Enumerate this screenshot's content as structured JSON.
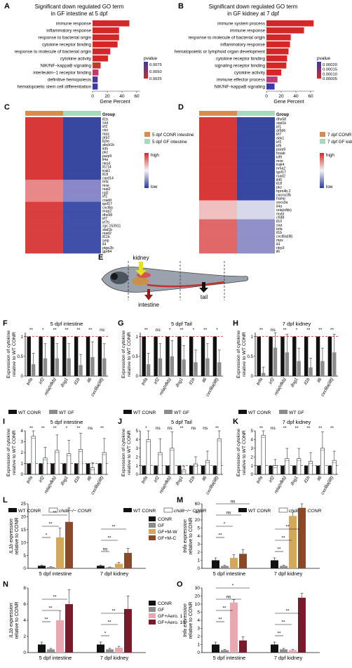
{
  "panels": {
    "A": {
      "letter": "A",
      "title": [
        "Significant down regulated GO term",
        "in GF intestine at 5 dpf"
      ],
      "xlabel": "Gene Percent",
      "legend_title": "pvalue",
      "legend_ticks": [
        "0.0075",
        "0.0050",
        "0.0025"
      ],
      "xticks": [
        "0",
        "20",
        "40",
        "60"
      ],
      "terms": [
        "immune response",
        "inflammatory response",
        "response to bacterial origin",
        "cytokine receptor binding",
        "response to molecule of bacterial origin",
        "cytokine activity",
        "NIK/NF−kappaB signaling",
        "interleukin−1 receptor binding",
        "definitive hemopoiesis",
        "hematopoietic stem cell differentiation"
      ],
      "values": [
        50,
        36,
        36,
        34,
        24,
        21,
        11,
        8,
        7,
        7
      ],
      "colors": [
        "#d62728",
        "#d62728",
        "#d62728",
        "#d62728",
        "#d62728",
        "#d62728",
        "#c0392b",
        "#c03a6a",
        "#4a3a9a",
        "#3a3aa8"
      ]
    },
    "B": {
      "letter": "B",
      "title": [
        "Significant down regulated GO term",
        "in GF kidney at 7 dpf"
      ],
      "xlabel": "Gene Percent",
      "legend_title": "pvalue",
      "legend_ticks": [
        "0.00020",
        "0.00015",
        "0.00010",
        "0.00005"
      ],
      "xticks": [
        "0",
        "20",
        "40",
        "60"
      ],
      "terms": [
        "immune system process",
        "immune response",
        "response to molecule of bacterial origin",
        "inflammatory response",
        "hematopoietic or lymphoid organ development",
        "cytokine receptor binding",
        "signaling receptor binding",
        "cytokine activity",
        "immune effector process",
        "NIK/NF−kappaB signaling"
      ],
      "values": [
        64,
        51,
        33,
        32,
        30,
        28,
        27,
        20,
        15,
        11
      ],
      "colors": [
        "#d62728",
        "#d62728",
        "#d62728",
        "#d62728",
        "#d62728",
        "#d62728",
        "#d62728",
        "#d62728",
        "#c0397a",
        "#3a3aa8"
      ]
    },
    "C": {
      "letter": "C",
      "group_label": "Group",
      "legend": [
        "5 dpf CONR intestine",
        "5 dpf GF intestine"
      ],
      "legend_colors": [
        "#d98c4f",
        "#a8d8c0"
      ],
      "scale": [
        "high",
        "low"
      ],
      "genes": [
        "il1b",
        "saa",
        "irf2",
        "ctsi",
        "mpx",
        "grp2",
        "b2m",
        "abcb1b",
        "il45",
        "pkz",
        "parp9",
        "il4a",
        "nlrp3",
        "il1r14",
        "irak1",
        "il18",
        "card14",
        "tnfa",
        "mxe",
        "rsat2",
        "rgl2",
        "irf1",
        "cradd",
        "igsf17",
        "cxcl8a",
        "erap2",
        "dhx58",
        "irf7",
        "irf7b",
        "zgc:153911",
        "stat1b",
        "rsad2",
        "il11b",
        "selp",
        "il4",
        "ptge2b",
        "gpr84"
      ]
    },
    "D": {
      "letter": "D",
      "group_label": "Group",
      "legend": [
        "7 dpf CONR kidney",
        "7 dpf GF kidney"
      ],
      "legend_colors": [
        "#d98c4f",
        "#a8d8c0"
      ],
      "scale": [
        "high",
        "low"
      ],
      "genes": [
        "dhx58",
        "stat1b",
        "irf1",
        "grbpb",
        "irf7",
        "ddx1",
        "irf2",
        "irf9",
        "parp9",
        "fosab",
        "kif9",
        "mxe",
        "irak4",
        "nr5a2",
        "igsf17",
        "rsad2",
        "il45",
        "il18",
        "pkz",
        "trpm4b.2",
        "cacna1fb",
        "hamp",
        "socs3a",
        "il4a",
        "rela(nfkb)",
        "mybl",
        "chd8",
        "il10",
        "saa",
        "tnfa",
        "il1b",
        "cxcl8a(il8)",
        "mpx",
        "il4",
        "nlrp3",
        "il6"
      ]
    },
    "E": {
      "letter": "E",
      "labels": [
        "kidney",
        "intestine",
        "tail"
      ]
    },
    "F": {
      "letter": "F",
      "title": "5 dpf intestine",
      "ylabel": [
        "Expression of cytokine",
        "relative to WT CONR"
      ],
      "yticks": [
        "0",
        "0.5",
        "1"
      ],
      "genes": [
        "tnfa",
        "irf2",
        "rela(nfkb)",
        "ifng1",
        "il1b",
        "il6",
        "cxcl8a(il8)"
      ],
      "values": [
        0.3,
        0.45,
        0.45,
        0.45,
        0.28,
        0.48,
        0.45
      ],
      "sig": [
        "**",
        "*",
        "**",
        "**",
        "**",
        "**",
        "ns"
      ],
      "legend": [
        "WT CONR",
        "WT GF"
      ]
    },
    "G": {
      "letter": "G",
      "title": "5 dpf Tail",
      "ylabel": [
        "Expression of cytokine",
        "relative to WT CONR"
      ],
      "yticks": [
        "0",
        "0.5",
        "1"
      ],
      "genes": [
        "tnfa",
        "irf2",
        "rela(nfkb)",
        "ifng1",
        "il1b",
        "il6",
        "cxcl8a(il8)"
      ],
      "values": [
        0.3,
        0.45,
        0.5,
        0.42,
        0.35,
        0.45,
        0.35
      ],
      "sig": [
        "**",
        "ns",
        "*",
        "**",
        "*",
        "**",
        "*"
      ],
      "legend": [
        "WT CONR",
        "WT GF"
      ]
    },
    "H": {
      "letter": "H",
      "title": "7 dpf kidney",
      "ylabel": [
        "Expression of cytokine",
        "relative to WT CONR"
      ],
      "yticks": [
        "0",
        "0.5",
        "1"
      ],
      "genes": [
        "tnfa",
        "irf2",
        "rela(nfkb)",
        "ifng1",
        "il1b",
        "il6",
        "cxcl8a(il8)"
      ],
      "values": [
        0.08,
        0.72,
        0.6,
        0.38,
        0.22,
        0.38,
        0.6
      ],
      "sig": [
        "**",
        "ns",
        "**",
        "*",
        "**",
        "**",
        "**"
      ],
      "legend": [
        "WT CONR",
        "WT GF"
      ]
    },
    "I": {
      "letter": "I",
      "title": "5 dpf intestine",
      "ylabel": [
        "Expression of cytokine",
        "relative to WT CONR"
      ],
      "yticks": [
        "0",
        "1",
        "2",
        "3",
        "4"
      ],
      "genes": [
        "tnfa",
        "irf2",
        "rela(nfkb)",
        "ifng1",
        "il1b",
        "il6",
        "cxcl8a(il8)"
      ],
      "values": [
        3.5,
        1.5,
        2.2,
        1.9,
        2.3,
        0.6,
        2.0
      ],
      "sig": [
        "**",
        "**",
        "**",
        "*",
        "**",
        "ns",
        "**"
      ],
      "legend": [
        "WT CONR",
        "chd8−/− CONR"
      ]
    },
    "J": {
      "letter": "J",
      "title": "5 dpf Tail",
      "ylabel": [
        "Expression of cytokine",
        "relative to WT CONR"
      ],
      "yticks": [
        "0",
        "1",
        "2",
        "3",
        "4",
        "5"
      ],
      "genes": [
        "tnfa",
        "irf2",
        "rela(nfkb)",
        "ifng1",
        "il1b",
        "il6",
        "cxcl8a(il8)"
      ],
      "values": [
        4.0,
        2.5,
        3.0,
        0.5,
        1.2,
        1.6,
        4.1
      ],
      "sig": [
        "*",
        "ns",
        "ns",
        "**",
        "ns",
        "ns",
        "**"
      ],
      "legend": [
        "WT CONR",
        "chd8−/− CONR"
      ]
    },
    "K": {
      "letter": "K",
      "title": "7 dpf kidney",
      "ylabel": [
        "Expression of cytokine",
        "relative to WT CONR"
      ],
      "yticks": [
        "0",
        "1",
        "2",
        "3",
        "4",
        "5"
      ],
      "genes": [
        "tnfa",
        "irf2",
        "rela(nfkb)",
        "ifng1",
        "il1b",
        "il6",
        "cxcl8a(il8)"
      ],
      "values": [
        4.5,
        1.0,
        1.8,
        1.8,
        1.5,
        3.0,
        1.6
      ],
      "sig": [
        "**",
        "ns",
        "**",
        "**",
        "**",
        "**",
        "**"
      ],
      "legend": [
        "WT CONR",
        "chd8−/− CONR"
      ]
    },
    "L": {
      "letter": "L",
      "ylabel": [
        "IL1b expression",
        "relative to CONR"
      ],
      "yticks": [
        "0",
        "5",
        "10",
        "15",
        "20",
        "25"
      ],
      "ymax": 25,
      "groups": [
        "5 dpf intestine",
        "7 dpf kidney"
      ],
      "conditions": [
        "CONR",
        "GF",
        "GF+M-W",
        "GF+M-C"
      ],
      "colors": [
        "#111111",
        "#8c8c8c",
        "#d4a85c",
        "#8a4a2a"
      ],
      "values": [
        [
          1.0,
          0.5,
          12.0,
          18.0
        ],
        [
          1.0,
          0.4,
          1.8,
          6.0
        ]
      ],
      "sig": [
        "*",
        "**",
        "**",
        "ns",
        "**",
        "**"
      ]
    },
    "M": {
      "letter": "M",
      "ylabel": [
        "tnfa expression",
        "relative to CONR"
      ],
      "yticks": [
        "0",
        "1",
        "2",
        "3",
        "4",
        "5",
        "20",
        "40",
        "60"
      ],
      "groups": [
        "5 dpf intestine",
        "7 dpf kidney"
      ],
      "conditions": [
        "CONR",
        "GF",
        "GF+M-W",
        "GF+M-C"
      ],
      "colors": [
        "#111111",
        "#8c8c8c",
        "#d4a85c",
        "#8a4a2a"
      ],
      "values": [
        [
          1.0,
          0.3,
          1.3,
          1.8
        ],
        [
          1.0,
          0.3,
          30,
          50
        ]
      ],
      "sig": [
        "**",
        "*",
        "ns",
        "ns",
        "**",
        "**",
        "**"
      ]
    },
    "N": {
      "letter": "N",
      "ylabel": [
        "IL1b expression",
        "relative to CONR"
      ],
      "yticks": [
        "0",
        "2",
        "4",
        "6",
        "8"
      ],
      "ymax": 8,
      "groups": [
        "5 dpf intestine",
        "7 dpf kidney"
      ],
      "conditions": [
        "CONR",
        "GF",
        "GF+Aero. 1",
        "GF+Aero. 10"
      ],
      "colors": [
        "#111111",
        "#8c8c8c",
        "#e8a8b0",
        "#7a1a2a"
      ],
      "values": [
        [
          1.0,
          0.4,
          4.0,
          6.0
        ],
        [
          1.0,
          0.4,
          0.6,
          5.4
        ]
      ],
      "sig": [
        "**",
        "**",
        "**",
        "*",
        "**",
        "**"
      ]
    },
    "O": {
      "letter": "O",
      "ylabel": [
        "tnfa expression",
        "relative to CONR"
      ],
      "yticks": [
        "0",
        "1",
        "2",
        "3",
        "4",
        "5",
        "10",
        "20",
        "30"
      ],
      "groups": [
        "5 dpf intestine",
        "7 dpf kidney"
      ],
      "conditions": [
        "CONR",
        "GF",
        "GF+Aero. 1",
        "GF+Aero. 10"
      ],
      "colors": [
        "#111111",
        "#8c8c8c",
        "#e8a8b0",
        "#7a1a2a"
      ],
      "values": [
        [
          1.0,
          0.3,
          12,
          1.5
        ],
        [
          1.0,
          0.4,
          0.3,
          18
        ]
      ],
      "sig": [
        "**",
        "**",
        "ns",
        "*",
        "**",
        "**",
        "**"
      ]
    }
  }
}
